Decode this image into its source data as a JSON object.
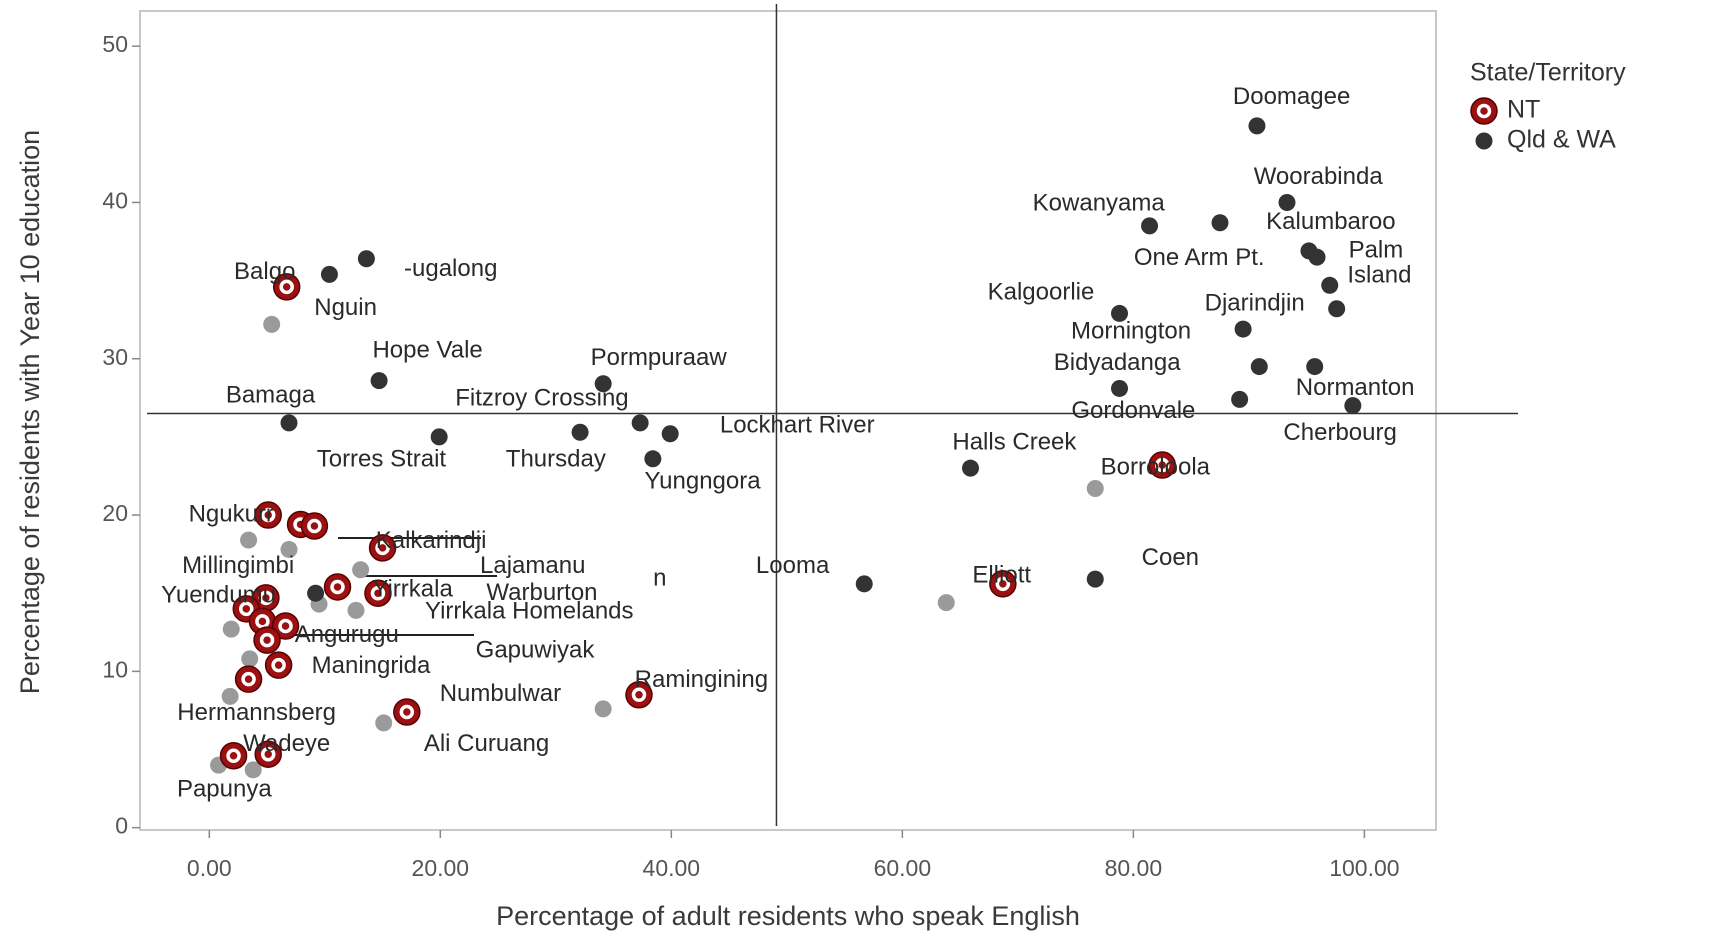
{
  "chart_data": {
    "type": "scatter",
    "x_label": "Percentage of adult residents who speak English",
    "y_label": "Percentage of residents with Year 10 education",
    "legend_title": "State/Territory",
    "legend_position": "right",
    "xlim": [
      -6,
      106.2
    ],
    "ylim": [
      -0.15,
      52.25
    ],
    "xticks": [
      {
        "value": 0,
        "label": "0.00"
      },
      {
        "value": 20,
        "label": "20.00"
      },
      {
        "value": 40,
        "label": "40.00"
      },
      {
        "value": 60,
        "label": "60.00"
      },
      {
        "value": 80,
        "label": "80.00"
      },
      {
        "value": 100,
        "label": "100.00"
      }
    ],
    "yticks": [
      0,
      10,
      20,
      30,
      40,
      50
    ],
    "reference_lines": {
      "x": 49.1,
      "y": 26.5
    },
    "series": [
      {
        "name": "NT",
        "color": "#9b1111",
        "x": [
          6.7,
          5.1,
          7.9,
          9.1,
          15.0,
          11.1,
          14.6,
          4.9,
          3.2,
          4.6,
          6.6,
          5.0,
          6.0,
          3.4,
          17.1,
          37.2,
          2.1,
          5.1,
          68.7,
          82.5
        ],
        "values": [
          34.6,
          20.0,
          19.4,
          19.3,
          17.9,
          15.4,
          15.0,
          14.7,
          14.0,
          13.2,
          12.9,
          12.0,
          10.4,
          9.5,
          7.4,
          8.5,
          4.6,
          4.7,
          15.6,
          23.2
        ]
      },
      {
        "name": "Qld & WA",
        "color": "#333333",
        "x": [
          90.7,
          93.3,
          81.4,
          87.5,
          95.2,
          95.9,
          97.0,
          78.8,
          97.6,
          89.5,
          90.9,
          95.7,
          78.8,
          89.2,
          99.0,
          65.9,
          76.7,
          56.7,
          13.6,
          10.4,
          14.7,
          34.1,
          6.9,
          19.9,
          32.1,
          37.3,
          39.9,
          38.4,
          9.2
        ],
        "values": [
          44.9,
          40.0,
          38.5,
          38.7,
          36.9,
          36.5,
          34.7,
          32.9,
          33.2,
          31.9,
          29.5,
          29.5,
          28.1,
          27.4,
          27.0,
          23.0,
          15.9,
          15.6,
          36.4,
          35.4,
          28.6,
          28.4,
          25.9,
          25.0,
          25.3,
          25.9,
          25.2,
          23.6,
          15.0
        ]
      },
      {
        "color": "#9a9a9a",
        "x": [
          5.4,
          76.7,
          63.8,
          34.1,
          15.1,
          3.4,
          6.9,
          13.1,
          9.5,
          12.7,
          1.9,
          3.5,
          1.8,
          0.8,
          3.8
        ],
        "values": [
          32.2,
          21.7,
          14.4,
          7.6,
          6.7,
          18.4,
          17.8,
          16.5,
          14.3,
          13.9,
          12.7,
          10.8,
          8.4,
          4.0,
          3.7
        ]
      }
    ],
    "annotations": [
      {
        "text": "Doomagee",
        "x": 93.7,
        "y": 46.7
      },
      {
        "text": "Woorabinda",
        "x": 96.0,
        "y": 41.6
      },
      {
        "text": "Kowanyama",
        "x": 77.0,
        "y": 39.9
      },
      {
        "text": "Kalumbaroo",
        "x": 97.1,
        "y": 38.7
      },
      {
        "text": "Palm",
        "x": 101.0,
        "y": 36.9
      },
      {
        "text": "One Arm Pt.",
        "x": 85.7,
        "y": 36.4
      },
      {
        "text": "Island",
        "x": 101.3,
        "y": 35.3
      },
      {
        "text": "Kalgoorlie",
        "x": 72.0,
        "y": 34.2
      },
      {
        "text": "Djarindjin",
        "x": 90.5,
        "y": 33.5
      },
      {
        "text": "Mornington",
        "x": 79.8,
        "y": 31.7
      },
      {
        "text": "Bidyadanga",
        "x": 78.6,
        "y": 29.7
      },
      {
        "text": "Normanton",
        "x": 99.2,
        "y": 28.1
      },
      {
        "text": "Gordonvale",
        "x": 80.0,
        "y": 26.6
      },
      {
        "text": "Cherbourg",
        "x": 97.9,
        "y": 25.2
      },
      {
        "text": "Halls Creek",
        "x": 69.7,
        "y": 24.6
      },
      {
        "text": "Borroloola",
        "x": 81.9,
        "y": 23.0
      },
      {
        "text": "Coen",
        "x": 83.2,
        "y": 17.2
      },
      {
        "text": "Looma",
        "x": 50.5,
        "y": 16.7
      },
      {
        "text": "Elliott",
        "x": 68.6,
        "y": 16.1
      },
      {
        "text": "Balgo",
        "x": 4.8,
        "y": 35.5
      },
      {
        "text": "-ugalong",
        "x": 20.9,
        "y": 35.7
      },
      {
        "text": "Nguin",
        "x": 11.8,
        "y": 33.2
      },
      {
        "text": "Hope Vale",
        "x": 18.9,
        "y": 30.5
      },
      {
        "text": "Pormpuraaw",
        "x": 38.9,
        "y": 30.0
      },
      {
        "text": "Bamaga",
        "x": 5.3,
        "y": 27.6
      },
      {
        "text": "Fitzroy Crossing",
        "x": 28.8,
        "y": 27.4
      },
      {
        "text": "Lockhart River",
        "x": 50.9,
        "y": 25.7
      },
      {
        "text": "Torres Strait",
        "x": 14.9,
        "y": 23.5
      },
      {
        "text": "Thursday",
        "x": 30.0,
        "y": 23.5
      },
      {
        "text": "Yungngora",
        "x": 42.7,
        "y": 22.1
      },
      {
        "text": "Ngukurr",
        "x": 1.9,
        "y": 20.0
      },
      {
        "text": "Kalkarindji",
        "x": 19.2,
        "y": 18.3
      },
      {
        "text": "Millingimbi",
        "x": 2.5,
        "y": 16.7
      },
      {
        "text": "Lajamanu",
        "x": 28.0,
        "y": 16.7
      },
      {
        "text": "n",
        "x": 39.0,
        "y": 15.9
      },
      {
        "text": "Yuendumu",
        "x": 0.8,
        "y": 14.8
      },
      {
        "text": "Yirrkala",
        "x": 17.6,
        "y": 15.2
      },
      {
        "text": "Warburton",
        "x": 28.8,
        "y": 14.98
      },
      {
        "text": "Yirrkala Homelands",
        "x": 27.7,
        "y": 13.8
      },
      {
        "text": "Angurugu",
        "x": 11.9,
        "y": 12.3
      },
      {
        "text": "Gapuwiyak",
        "x": 28.2,
        "y": 11.3
      },
      {
        "text": "Maningrida",
        "x": 14.0,
        "y": 10.3
      },
      {
        "text": "Ramingining",
        "x": 42.6,
        "y": 9.4
      },
      {
        "text": "Numbulwar",
        "x": 25.2,
        "y": 8.5
      },
      {
        "text": "Hermannsberg",
        "x": 4.1,
        "y": 7.3
      },
      {
        "text": "Wadeye",
        "x": 6.7,
        "y": 5.3
      },
      {
        "text": "Ali Curuang",
        "x": 24.0,
        "y": 5.3
      },
      {
        "text": "Papunya",
        "x": 1.3,
        "y": 2.4
      }
    ]
  }
}
